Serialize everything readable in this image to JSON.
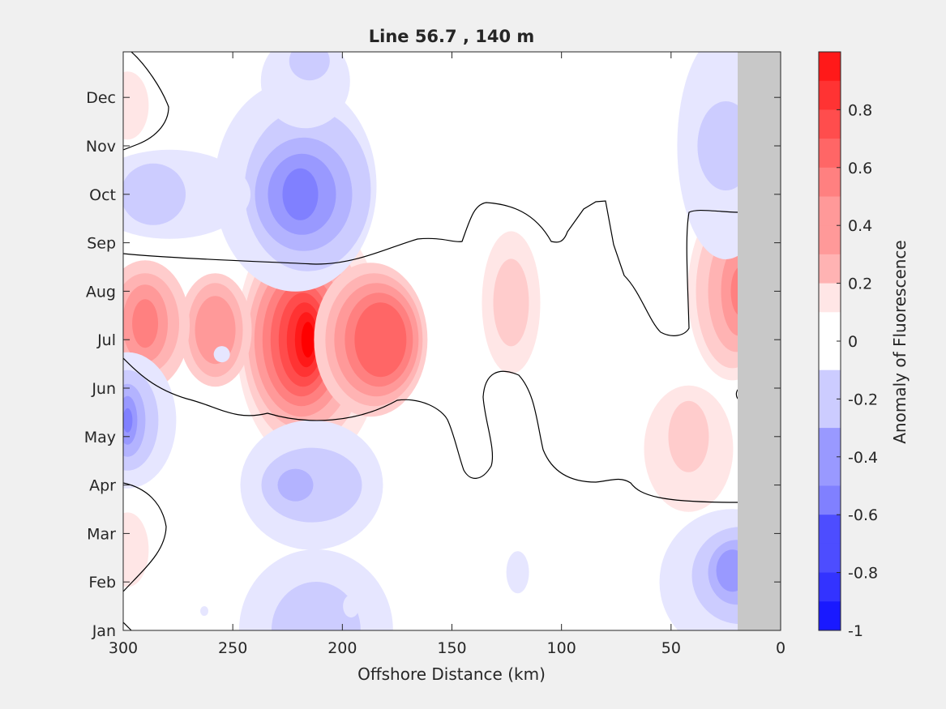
{
  "chart_data": {
    "type": "contourf",
    "title": "Line 56.7 , 140 m",
    "xlabel": "Offshore Distance (km)",
    "ylabel": "",
    "xlim": [
      300,
      0
    ],
    "x_ticks": [
      300,
      250,
      200,
      150,
      100,
      50,
      0
    ],
    "y_ticks": [
      "Jan",
      "Feb",
      "Mar",
      "Apr",
      "May",
      "Jun",
      "Jul",
      "Aug",
      "Sep",
      "Oct",
      "Nov",
      "Dec"
    ],
    "no_data_range_km": [
      0,
      20
    ],
    "colorbar": {
      "label": "Anomaly of Fluorescence",
      "range": [
        -1,
        1
      ],
      "ticks": [
        "0.8",
        "0.6",
        "0.4",
        "0.2",
        "0",
        "-0.2",
        "-0.4",
        "-0.6",
        "-0.8",
        "-1"
      ],
      "tick_values": [
        0.8,
        0.6,
        0.4,
        0.2,
        0,
        -0.2,
        -0.4,
        -0.6,
        -0.8,
        -1
      ],
      "levels": 20
    },
    "features": [
      {
        "sign": "positive",
        "center_km": 215,
        "center_month": "Jul",
        "peak": 1.0
      },
      {
        "sign": "positive",
        "center_km": 190,
        "center_month": "Jul",
        "peak": 0.6
      },
      {
        "sign": "positive",
        "center_km": 258,
        "center_month": "Jul",
        "peak": 0.4
      },
      {
        "sign": "positive",
        "center_km": 290,
        "center_month": "Jul",
        "peak": 0.5
      },
      {
        "sign": "positive",
        "center_km": 123,
        "center_month": "Aug",
        "peak": 0.3
      },
      {
        "sign": "positive",
        "center_km": 22,
        "center_month": "Aug",
        "peak": 0.5
      },
      {
        "sign": "positive",
        "center_km": 42,
        "center_month": "May",
        "peak": 0.3
      },
      {
        "sign": "positive",
        "center_km": 298,
        "center_month": "Dec",
        "peak": 0.2
      },
      {
        "sign": "positive",
        "center_km": 298,
        "center_month": "Mar",
        "peak": 0.2
      },
      {
        "sign": "negative",
        "center_km": 214,
        "center_month": "Oct",
        "peak": -0.5
      },
      {
        "sign": "negative",
        "center_km": 298,
        "center_month": "May",
        "peak": -0.5
      },
      {
        "sign": "negative",
        "center_km": 214,
        "center_month": "Apr",
        "peak": -0.4
      },
      {
        "sign": "negative",
        "center_km": 22,
        "center_month": "Feb",
        "peak": -0.4
      },
      {
        "sign": "negative",
        "center_km": 212,
        "center_month": "Jan",
        "peak": -0.3
      },
      {
        "sign": "negative",
        "center_km": 290,
        "center_month": "Oct",
        "peak": -0.3
      },
      {
        "sign": "negative",
        "center_km": 215,
        "center_month": "Dec",
        "peak": -0.2
      },
      {
        "sign": "negative",
        "center_km": 25,
        "center_month": "Nov",
        "peak": -0.3
      }
    ]
  }
}
